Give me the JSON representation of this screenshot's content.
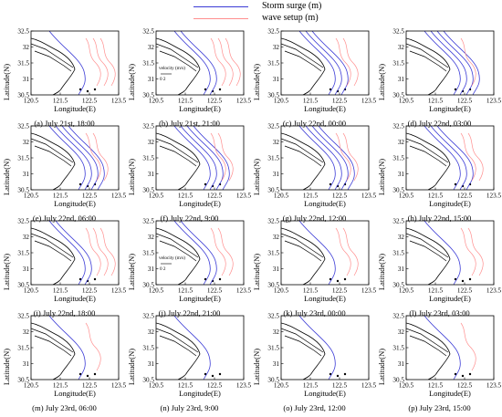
{
  "legend": [
    {
      "label": "Storm surge (m)",
      "color": "#3b3bd6"
    },
    {
      "label": "wave setup (m)",
      "color": "#ff8f8f"
    }
  ],
  "axes": {
    "ylabel": "Latitude(N)",
    "xlabel": "Longitude(E)",
    "xticks": [
      "120.5",
      "121.5",
      "122.5",
      "123.5"
    ],
    "yticks": [
      "32.5",
      "32",
      "31.5",
      "31",
      "30.5"
    ]
  },
  "inset": {
    "label": "velocity (m/s)",
    "scale": "0  2"
  },
  "panels": [
    {
      "caption": "(a) July 21st, 18:00",
      "surge_lines": 1,
      "setup_lines": 3,
      "inset": false
    },
    {
      "caption": "(b) July 21st, 21:00",
      "surge_lines": 2,
      "setup_lines": 3,
      "inset": true
    },
    {
      "caption": "(c) July 22nd, 00:00",
      "surge_lines": 3,
      "setup_lines": 2,
      "inset": false
    },
    {
      "caption": "(d) July 22nd, 03:00",
      "surge_lines": 4,
      "setup_lines": 1,
      "inset": false
    },
    {
      "caption": "(e) July 22nd, 06:00",
      "surge_lines": 4,
      "setup_lines": 2,
      "inset": false
    },
    {
      "caption": "(f) July 22nd, 9:00",
      "surge_lines": 4,
      "setup_lines": 2,
      "inset": false
    },
    {
      "caption": "(g) July 22nd, 12:00",
      "surge_lines": 4,
      "setup_lines": 2,
      "inset": false
    },
    {
      "caption": "(h) July 22nd, 15:00",
      "surge_lines": 3,
      "setup_lines": 2,
      "inset": false
    },
    {
      "caption": "(i) July 22nd, 18:00",
      "surge_lines": 2,
      "setup_lines": 3,
      "inset": false
    },
    {
      "caption": "(j) July 22nd, 21:00",
      "surge_lines": 2,
      "setup_lines": 2,
      "inset": true
    },
    {
      "caption": "(k) July 23rd, 00:00",
      "surge_lines": 1,
      "setup_lines": 2,
      "inset": false
    },
    {
      "caption": "(l) July 23rd, 03:00",
      "surge_lines": 1,
      "setup_lines": 2,
      "inset": false
    },
    {
      "caption": "(m) July 23rd, 06:00",
      "surge_lines": 1,
      "setup_lines": 1,
      "inset": false
    },
    {
      "caption": "(n) July 23rd, 9:00",
      "surge_lines": 1,
      "setup_lines": 0,
      "inset": false
    },
    {
      "caption": "(o) July 23rd, 12:00",
      "surge_lines": 1,
      "setup_lines": 0,
      "inset": false
    },
    {
      "caption": "(p) July 23rd, 15:00",
      "surge_lines": 1,
      "setup_lines": 1,
      "inset": false
    }
  ]
}
